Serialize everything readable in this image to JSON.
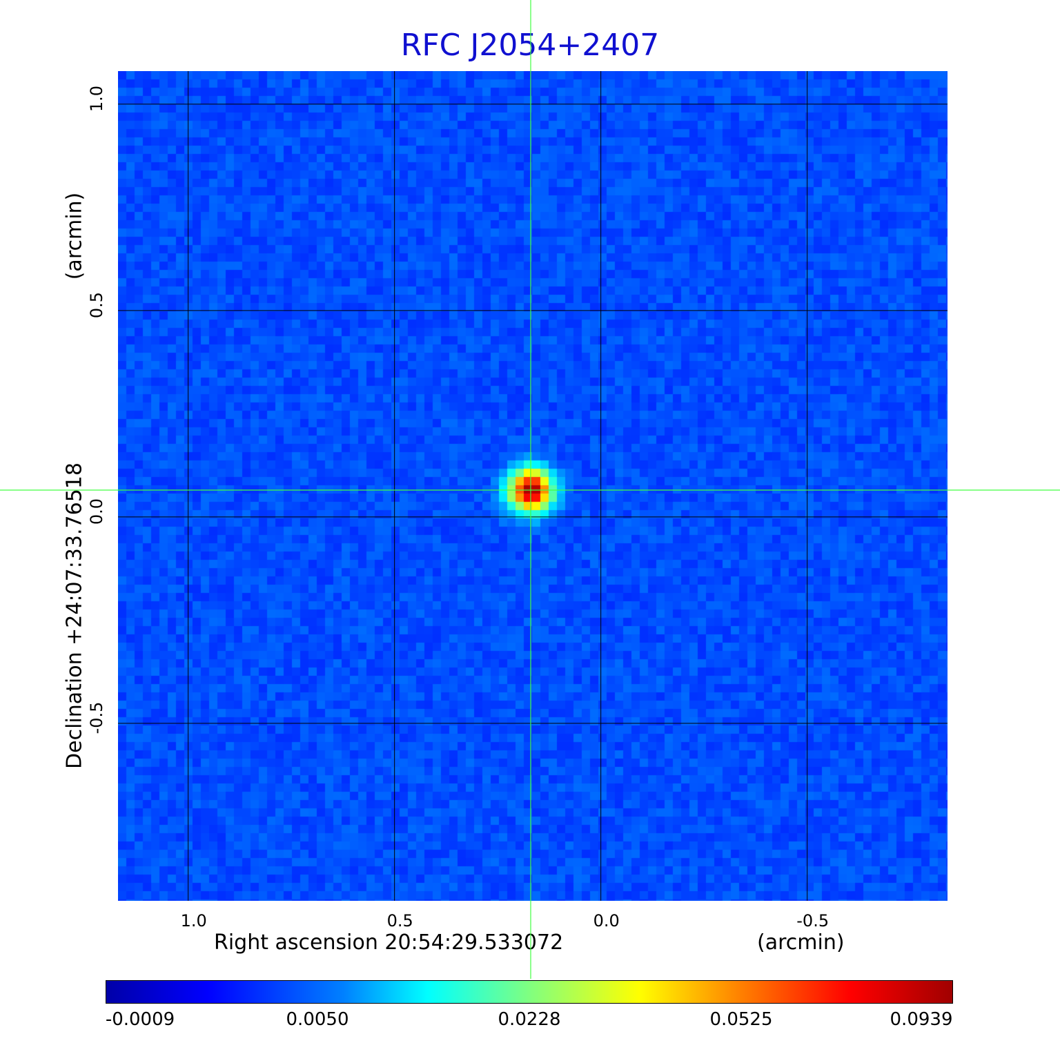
{
  "chart_data": {
    "type": "heatmap",
    "title": "RFC J2054+2407",
    "xlabel": "Right ascension  20:54:29.533072",
    "xunit": "(arcmin)",
    "ylabel": "Declination  +24:07:33.76518",
    "yunit": "(arcmin)",
    "x_ticks": [
      1.0,
      0.5,
      0.0,
      -0.5
    ],
    "x_tick_labels": [
      "1.0",
      "0.5",
      "0.0",
      "-0.5"
    ],
    "y_ticks": [
      1.0,
      0.5,
      0.0,
      -0.5
    ],
    "y_tick_labels": [
      "1.0",
      "0.5",
      "0.0",
      "-0.5"
    ],
    "xlim": [
      1.17,
      -0.84
    ],
    "ylim": [
      -0.93,
      1.08
    ],
    "grid": true,
    "source": {
      "x": 0.17,
      "y": 0.065,
      "peak": 0.0939
    },
    "crosshair": {
      "x": 0.17,
      "y": 0.065
    },
    "colormap": "jet",
    "colorbar": {
      "tick_labels": [
        "-0.0009",
        "0.0050",
        "0.0228",
        "0.0525",
        "0.0939"
      ],
      "min": -0.0009,
      "max": 0.0939
    }
  },
  "colors": {
    "title": "#1010d0",
    "background_map": "#1a3ff0",
    "grid": "#000000",
    "crosshair": "#40ff40"
  }
}
